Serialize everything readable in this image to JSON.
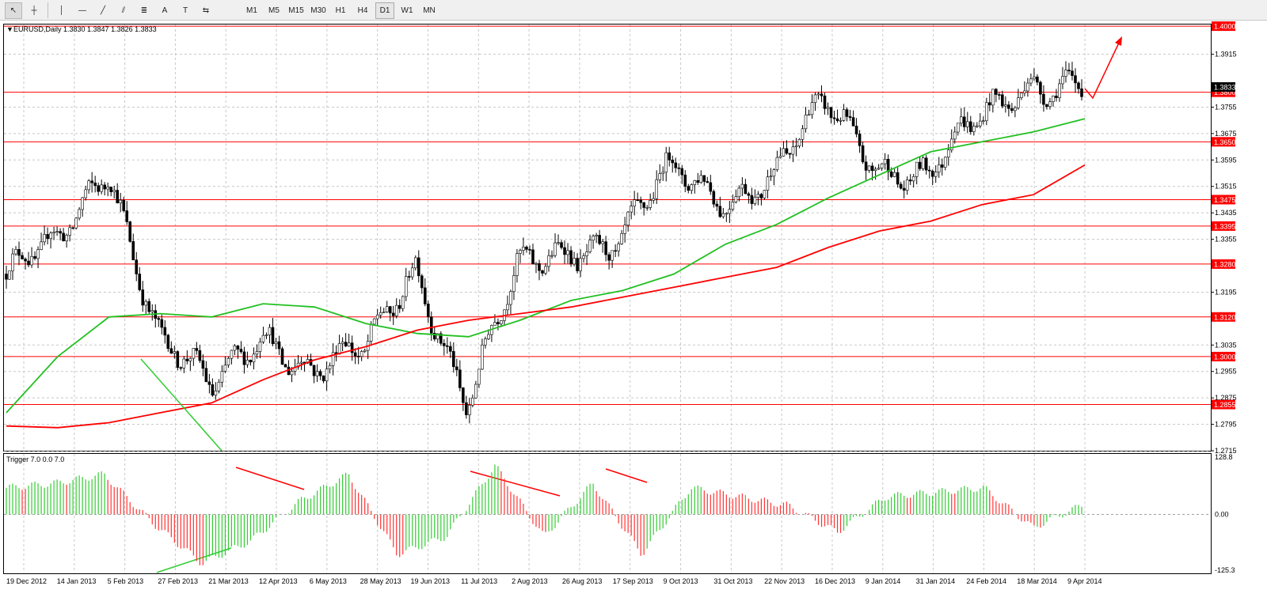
{
  "toolbar": {
    "tools": [
      {
        "name": "cursor-icon",
        "glyph": "↖",
        "active": true
      },
      {
        "name": "crosshair-icon",
        "glyph": "┼",
        "active": false
      },
      {
        "name": "vertical-line-icon",
        "glyph": "│",
        "active": false
      },
      {
        "name": "horizontal-line-icon",
        "glyph": "—",
        "active": false
      },
      {
        "name": "trendline-icon",
        "glyph": "╱",
        "active": false
      },
      {
        "name": "equidistant-channel-icon",
        "glyph": "⫽",
        "active": false
      },
      {
        "name": "fibonacci-icon",
        "glyph": "≣",
        "active": false
      },
      {
        "name": "text-icon",
        "glyph": "A",
        "active": false
      },
      {
        "name": "text-label-icon",
        "glyph": "T",
        "active": false
      },
      {
        "name": "arrow-shapes-icon",
        "glyph": "⇆",
        "active": false
      }
    ],
    "timeframes": [
      "M1",
      "M5",
      "M15",
      "M30",
      "H1",
      "H4",
      "D1",
      "W1",
      "MN"
    ],
    "active_timeframe": "D1"
  },
  "chart": {
    "header_text": "EURUSD,Daily  1.3830 1.3847 1.3826 1.3833",
    "header_arrow": "▼",
    "current_price_label": "1.3833",
    "price_ticks": [
      "1.3915",
      "1.3755",
      "1.3675",
      "1.3595",
      "1.3515",
      "1.3435",
      "1.3355",
      "1.3195",
      "1.3035",
      "1.2955",
      "1.2875",
      "1.2795",
      "1.2715"
    ],
    "levels": [
      {
        "label": "1.4000",
        "value": 1.4
      },
      {
        "label": "1.3800",
        "value": 1.38
      },
      {
        "label": "1.3650",
        "value": 1.365
      },
      {
        "label": "1.3475",
        "value": 1.3475
      },
      {
        "label": "1.3395",
        "value": 1.3395
      },
      {
        "label": "1.3280",
        "value": 1.328
      },
      {
        "label": "1.3120",
        "value": 1.312
      },
      {
        "label": "1.3000",
        "value": 1.3
      },
      {
        "label": "1.2855",
        "value": 1.2855
      }
    ],
    "date_labels": [
      "19 Dec 2012",
      "14 Jan 2013",
      "5 Feb 2013",
      "27 Feb 2013",
      "21 Mar 2013",
      "12 Apr 2013",
      "6 May 2013",
      "28 May 2013",
      "19 Jun 2013",
      "11 Jul 2013",
      "2 Aug 2013",
      "26 Aug 2013",
      "17 Sep 2013",
      "9 Oct 2013",
      "31 Oct 2013",
      "22 Nov 2013",
      "16 Dec 2013",
      "9 Jan 2014",
      "31 Jan 2014",
      "24 Feb 2014",
      "18 Mar 2014",
      "9 Apr 2014"
    ]
  },
  "indicator": {
    "label": "Trigger 7.0 0.0 7.0",
    "ticks": [
      "128.8",
      "0.00",
      "-125.3"
    ]
  },
  "colors": {
    "level_line": "#ff0000",
    "sma_fast": "#22c022",
    "sma_slow": "#ff0000",
    "bull_candle": "#ffffff",
    "bear_candle": "#000000",
    "hist_pos": "#33cc33",
    "hist_neg": "#ff3333",
    "annotation_red": "#ff0000",
    "annotation_green": "#33cc33"
  },
  "chart_data": {
    "type": "line",
    "symbol": "EURUSD",
    "timeframe": "Daily",
    "price_range": [
      1.2715,
      1.4005
    ],
    "key_points": [
      {
        "date": "19 Dec 2012",
        "close": 1.325
      },
      {
        "date": "14 Jan 2013",
        "close": 1.332
      },
      {
        "date": "5 Feb 2013",
        "close": 1.36
      },
      {
        "date": "27 Feb 2013",
        "close": 1.305
      },
      {
        "date": "21 Mar 2013",
        "close": 1.288
      },
      {
        "date": "12 Apr 2013",
        "close": 1.31
      },
      {
        "date": "6 May 2013",
        "close": 1.295
      },
      {
        "date": "28 May 2013",
        "close": 1.3
      },
      {
        "date": "19 Jun 2013",
        "close": 1.33
      },
      {
        "date": "11 Jul 2013",
        "close": 1.285
      },
      {
        "date": "2 Aug 2013",
        "close": 1.325
      },
      {
        "date": "26 Aug 2013",
        "close": 1.335
      },
      {
        "date": "17 Sep 2013",
        "close": 1.335
      },
      {
        "date": "9 Oct 2013",
        "close": 1.355
      },
      {
        "date": "31 Oct 2013",
        "close": 1.35
      },
      {
        "date": "22 Nov 2013",
        "close": 1.355
      },
      {
        "date": "16 Dec 2013",
        "close": 1.375
      },
      {
        "date": "9 Jan 2014",
        "close": 1.36
      },
      {
        "date": "31 Jan 2014",
        "close": 1.355
      },
      {
        "date": "24 Feb 2014",
        "close": 1.37
      },
      {
        "date": "18 Mar 2014",
        "close": 1.385
      },
      {
        "date": "9 Apr 2014",
        "close": 1.3833
      }
    ],
    "sma_fast": [
      1.283,
      1.3,
      1.312,
      1.313,
      1.312,
      1.316,
      1.315,
      1.31,
      1.307,
      1.306,
      1.311,
      1.317,
      1.32,
      1.325,
      1.334,
      1.34,
      1.348,
      1.355,
      1.362,
      1.365,
      1.368,
      1.372
    ],
    "sma_slow": [
      1.279,
      1.2785,
      1.28,
      1.283,
      1.286,
      1.293,
      1.299,
      1.303,
      1.308,
      1.311,
      1.313,
      1.315,
      1.318,
      1.321,
      1.324,
      1.327,
      1.333,
      1.338,
      1.341,
      1.346,
      1.349,
      1.358
    ],
    "trigger_histogram": [
      60,
      70,
      90,
      -20,
      -110,
      -60,
      30,
      90,
      -90,
      -50,
      110,
      -50,
      70,
      -90,
      60,
      40,
      20,
      -40,
      40,
      50,
      60,
      -30,
      20
    ],
    "trigger_range": [
      -125.3,
      128.8
    ]
  }
}
